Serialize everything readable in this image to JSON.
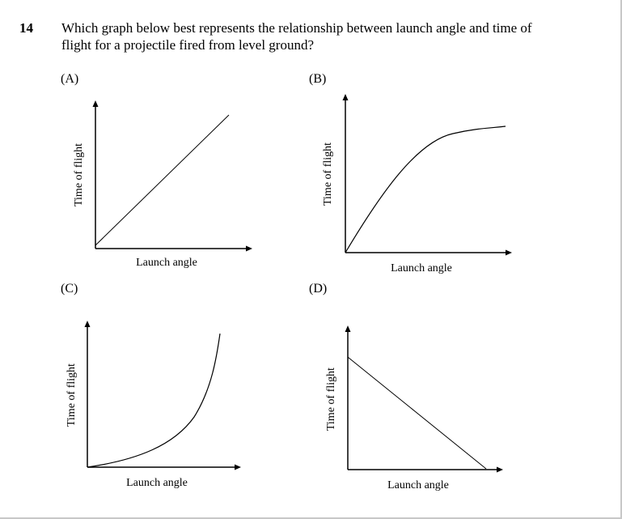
{
  "question": {
    "number": "14",
    "text": "Which graph below best represents the relationship between launch angle and time of flight for a projectile fired from level ground?"
  },
  "options": [
    {
      "label": "(A)",
      "xlabel": "Launch angle",
      "ylabel": "Time of flight",
      "curve": "linear increasing"
    },
    {
      "label": "(B)",
      "xlabel": "Launch angle",
      "ylabel": "Time of flight",
      "curve": "increasing, leveling off"
    },
    {
      "label": "(C)",
      "xlabel": "Launch angle",
      "ylabel": "Time of flight",
      "curve": "increasing, curving upward"
    },
    {
      "label": "(D)",
      "xlabel": "Launch angle",
      "ylabel": "Time of flight",
      "curve": "linear decreasing"
    }
  ]
}
